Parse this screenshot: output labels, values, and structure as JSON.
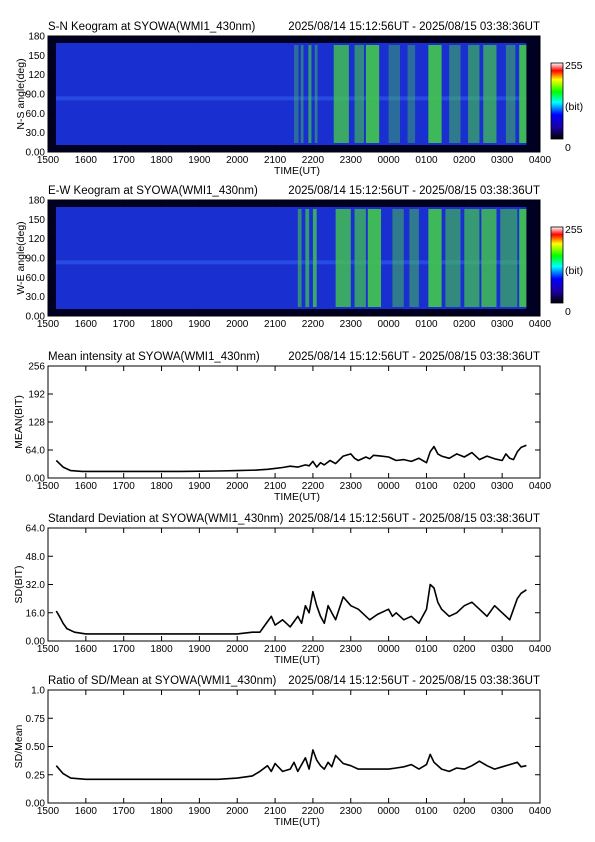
{
  "colors": {
    "keogram_background": "#1a2fd0",
    "aurora": "#43c84a",
    "line": "#000000"
  },
  "time_axis": {
    "ticks": [
      "1500",
      "1600",
      "1700",
      "1800",
      "1900",
      "2000",
      "2100",
      "2200",
      "2300",
      "0000",
      "0100",
      "0200",
      "0300",
      "0400"
    ],
    "label": "TIME(UT)"
  },
  "colorbar": {
    "max": "255",
    "unit": "(bit)",
    "min": "0"
  },
  "panels": [
    {
      "id": "sn",
      "title": "S-N Keogram at SYOWA(WMI1_430nm)",
      "time_range": "2025/08/14 15:12:56UT - 2025/08/15 03:38:36UT",
      "ylabel": "N-S angle(deg)",
      "yticks": [
        "0.00",
        "30.0",
        "60.0",
        "90.0",
        "120",
        "150",
        "180"
      ],
      "show_xlabel": true
    },
    {
      "id": "ew",
      "title": "E-W Keogram at SYOWA(WMI1_430nm)",
      "time_range": "2025/08/14 15:12:56UT - 2025/08/15 03:38:36UT",
      "ylabel": "W-E angle(deg)",
      "yticks": [
        "0.00",
        "30.0",
        "60.0",
        "90.0",
        "120",
        "150",
        "180"
      ],
      "show_xlabel": false
    },
    {
      "id": "mean",
      "title": "Mean intensity at SYOWA(WMI1_430nm)",
      "time_range": "2025/08/14 15:12:56UT - 2025/08/15 03:38:36UT",
      "ylabel": "MEAN(BIT)",
      "yticks": [
        "0.00",
        "64.0",
        "128",
        "192",
        "256"
      ],
      "show_xlabel": true
    },
    {
      "id": "sd",
      "title": "Standard Deviation at SYOWA(WMI1_430nm)",
      "time_range": "2025/08/14 15:12:56UT - 2025/08/15 03:38:36UT",
      "ylabel": "SD(BIT)",
      "yticks": [
        "0.00",
        "16.0",
        "32.0",
        "48.0",
        "64.0"
      ],
      "show_xlabel": true
    },
    {
      "id": "ratio",
      "title": "Ratio of SD/Mean at SYOWA(WMI1_430nm)",
      "time_range": "2025/08/14 15:12:56UT - 2025/08/15 03:38:36UT",
      "ylabel": "SD/Mean",
      "yticks": [
        "0.00",
        "0.25",
        "0.50",
        "0.75",
        "1.0"
      ],
      "show_xlabel": true
    }
  ],
  "chart_data": [
    {
      "type": "heatmap",
      "title": "S-N Keogram at SYOWA(WMI1_430nm)",
      "subtitle": "2025/08/14 15:12:56UT - 2025/08/15 03:38:36UT",
      "xlabel": "TIME(UT)",
      "ylabel": "N-S angle(deg)",
      "xlim": [
        15.0,
        28.0
      ],
      "ylim": [
        0,
        180
      ],
      "color_range": [
        0,
        255
      ],
      "aurora_segments": [
        {
          "t0": 21.5,
          "t1": 21.62,
          "intensity": 0.4
        },
        {
          "t0": 21.68,
          "t1": 21.75,
          "intensity": 0.5
        },
        {
          "t0": 21.88,
          "t1": 21.96,
          "intensity": 0.7
        },
        {
          "t0": 22.05,
          "t1": 22.12,
          "intensity": 0.5
        },
        {
          "t0": 22.55,
          "t1": 22.95,
          "intensity": 0.8
        },
        {
          "t0": 23.1,
          "t1": 23.35,
          "intensity": 0.6
        },
        {
          "t0": 23.4,
          "t1": 23.75,
          "intensity": 0.9
        },
        {
          "t0": 24.0,
          "t1": 24.3,
          "intensity": 0.4
        },
        {
          "t0": 24.5,
          "t1": 24.7,
          "intensity": 0.4
        },
        {
          "t0": 25.05,
          "t1": 25.4,
          "intensity": 0.9
        },
        {
          "t0": 25.6,
          "t1": 25.9,
          "intensity": 0.5
        },
        {
          "t0": 26.1,
          "t1": 26.4,
          "intensity": 0.6
        },
        {
          "t0": 26.5,
          "t1": 26.85,
          "intensity": 0.7
        },
        {
          "t0": 27.1,
          "t1": 27.35,
          "intensity": 0.5
        },
        {
          "t0": 27.45,
          "t1": 27.64,
          "intensity": 0.9
        }
      ]
    },
    {
      "type": "heatmap",
      "title": "E-W Keogram at SYOWA(WMI1_430nm)",
      "subtitle": "2025/08/14 15:12:56UT - 2025/08/15 03:38:36UT",
      "xlabel": "",
      "ylabel": "W-E angle(deg)",
      "xlim": [
        15.0,
        28.0
      ],
      "ylim": [
        0,
        180
      ],
      "color_range": [
        0,
        255
      ],
      "aurora_segments": [
        {
          "t0": 21.6,
          "t1": 21.7,
          "intensity": 0.6
        },
        {
          "t0": 21.8,
          "t1": 21.9,
          "intensity": 0.7
        },
        {
          "t0": 22.0,
          "t1": 22.1,
          "intensity": 0.8
        },
        {
          "t0": 22.6,
          "t1": 23.0,
          "intensity": 0.8
        },
        {
          "t0": 23.1,
          "t1": 23.4,
          "intensity": 0.7
        },
        {
          "t0": 23.45,
          "t1": 23.8,
          "intensity": 0.9
        },
        {
          "t0": 24.1,
          "t1": 24.4,
          "intensity": 0.5
        },
        {
          "t0": 24.55,
          "t1": 24.8,
          "intensity": 0.5
        },
        {
          "t0": 25.05,
          "t1": 25.4,
          "intensity": 0.9
        },
        {
          "t0": 25.5,
          "t1": 25.9,
          "intensity": 0.6
        },
        {
          "t0": 26.0,
          "t1": 26.4,
          "intensity": 0.7
        },
        {
          "t0": 26.45,
          "t1": 26.85,
          "intensity": 0.8
        },
        {
          "t0": 26.95,
          "t1": 27.4,
          "intensity": 0.6
        },
        {
          "t0": 27.45,
          "t1": 27.64,
          "intensity": 0.9
        }
      ]
    },
    {
      "type": "line",
      "title": "Mean intensity at SYOWA(WMI1_430nm)",
      "subtitle": "2025/08/14 15:12:56UT - 2025/08/15 03:38:36UT",
      "xlabel": "TIME(UT)",
      "ylabel": "MEAN(BIT)",
      "xlim": [
        15.0,
        28.0
      ],
      "ylim": [
        0,
        256
      ],
      "x": [
        15.22,
        15.4,
        15.6,
        15.9,
        16.5,
        17.5,
        18.5,
        19.5,
        20.0,
        20.5,
        20.8,
        21.0,
        21.2,
        21.4,
        21.6,
        21.8,
        21.9,
        22.0,
        22.1,
        22.2,
        22.3,
        22.45,
        22.6,
        22.8,
        23.0,
        23.1,
        23.2,
        23.4,
        23.5,
        23.6,
        23.8,
        24.0,
        24.2,
        24.4,
        24.6,
        24.8,
        25.0,
        25.1,
        25.2,
        25.3,
        25.4,
        25.6,
        25.8,
        26.0,
        26.2,
        26.4,
        26.6,
        26.8,
        27.0,
        27.1,
        27.2,
        27.3,
        27.4,
        27.5,
        27.64
      ],
      "y": [
        40,
        25,
        17,
        15,
        15,
        15,
        15,
        16,
        17,
        18,
        20,
        22,
        24,
        27,
        25,
        30,
        28,
        38,
        25,
        35,
        30,
        40,
        33,
        50,
        55,
        45,
        40,
        48,
        44,
        52,
        50,
        48,
        40,
        42,
        38,
        45,
        35,
        60,
        72,
        55,
        50,
        45,
        55,
        48,
        58,
        42,
        50,
        44,
        40,
        55,
        45,
        42,
        60,
        70,
        75
      ]
    },
    {
      "type": "line",
      "title": "Standard Deviation at SYOWA(WMI1_430nm)",
      "subtitle": "2025/08/14 15:12:56UT - 2025/08/15 03:38:36UT",
      "xlabel": "TIME(UT)",
      "ylabel": "SD(BIT)",
      "xlim": [
        15.0,
        28.0
      ],
      "ylim": [
        0,
        64
      ],
      "x": [
        15.22,
        15.3,
        15.4,
        15.5,
        15.7,
        16.0,
        17.0,
        18.0,
        19.0,
        20.0,
        20.4,
        20.6,
        20.7,
        20.8,
        20.9,
        21.0,
        21.2,
        21.4,
        21.5,
        21.6,
        21.7,
        21.8,
        21.9,
        22.0,
        22.1,
        22.2,
        22.3,
        22.4,
        22.5,
        22.6,
        22.8,
        23.0,
        23.2,
        23.4,
        23.5,
        23.7,
        24.0,
        24.1,
        24.2,
        24.4,
        24.6,
        24.8,
        25.0,
        25.1,
        25.2,
        25.3,
        25.4,
        25.6,
        25.8,
        26.0,
        26.2,
        26.4,
        26.6,
        26.8,
        27.0,
        27.2,
        27.4,
        27.5,
        27.64
      ],
      "y": [
        17,
        14,
        10,
        7,
        5,
        4,
        4,
        4,
        4,
        4,
        5,
        5,
        8,
        11,
        14,
        9,
        12,
        8,
        11,
        14,
        10,
        20,
        16,
        28,
        20,
        14,
        10,
        20,
        16,
        12,
        25,
        20,
        18,
        14,
        12,
        15,
        18,
        14,
        16,
        12,
        14,
        10,
        18,
        32,
        30,
        22,
        18,
        14,
        16,
        20,
        22,
        18,
        14,
        20,
        16,
        12,
        24,
        27,
        29
      ]
    },
    {
      "type": "line",
      "title": "Ratio of SD/Mean at SYOWA(WMI1_430nm)",
      "subtitle": "2025/08/14 15:12:56UT - 2025/08/15 03:38:36UT",
      "xlabel": "TIME(UT)",
      "ylabel": "SD/Mean",
      "xlim": [
        15.0,
        28.0
      ],
      "ylim": [
        0,
        1.0
      ],
      "x": [
        15.22,
        15.4,
        15.6,
        16.0,
        17.0,
        18.0,
        19.0,
        19.5,
        20.0,
        20.4,
        20.6,
        20.8,
        20.9,
        21.0,
        21.2,
        21.4,
        21.5,
        21.6,
        21.7,
        21.8,
        21.9,
        22.0,
        22.1,
        22.2,
        22.3,
        22.4,
        22.5,
        22.6,
        22.8,
        23.0,
        23.2,
        23.4,
        23.6,
        23.8,
        24.0,
        24.2,
        24.4,
        24.6,
        24.8,
        25.0,
        25.1,
        25.2,
        25.4,
        25.6,
        25.8,
        26.0,
        26.2,
        26.4,
        26.6,
        26.8,
        27.0,
        27.2,
        27.4,
        27.5,
        27.64
      ],
      "y": [
        0.33,
        0.26,
        0.22,
        0.21,
        0.21,
        0.21,
        0.21,
        0.21,
        0.22,
        0.24,
        0.28,
        0.33,
        0.28,
        0.35,
        0.28,
        0.3,
        0.36,
        0.28,
        0.34,
        0.4,
        0.3,
        0.47,
        0.38,
        0.33,
        0.3,
        0.36,
        0.32,
        0.42,
        0.35,
        0.33,
        0.3,
        0.3,
        0.3,
        0.3,
        0.3,
        0.31,
        0.32,
        0.34,
        0.3,
        0.34,
        0.43,
        0.36,
        0.3,
        0.28,
        0.31,
        0.3,
        0.33,
        0.37,
        0.33,
        0.3,
        0.32,
        0.34,
        0.36,
        0.32,
        0.33
      ]
    }
  ]
}
